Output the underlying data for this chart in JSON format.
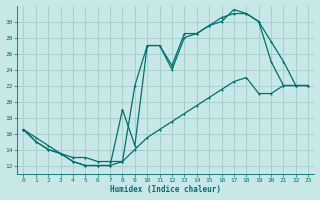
{
  "xlabel": "Humidex (Indice chaleur)",
  "bg_color": "#c8e8e8",
  "grid_color": "#a8cece",
  "line_color": "#007070",
  "xlim": [
    -0.5,
    23.5
  ],
  "ylim": [
    11,
    32
  ],
  "xticks": [
    0,
    1,
    2,
    3,
    4,
    5,
    6,
    7,
    8,
    9,
    10,
    11,
    12,
    13,
    14,
    15,
    16,
    17,
    18,
    19,
    20,
    21,
    22,
    23
  ],
  "yticks": [
    12,
    14,
    16,
    18,
    20,
    22,
    24,
    26,
    28,
    30
  ],
  "line1_x": [
    0,
    1,
    2,
    3,
    4,
    5,
    6,
    7,
    8,
    9,
    10,
    11,
    12,
    13,
    14,
    15,
    16,
    17,
    18,
    19,
    20,
    21,
    22,
    23
  ],
  "line1_y": [
    16.5,
    15.0,
    14.0,
    13.5,
    12.5,
    12.0,
    12.0,
    12.0,
    19.0,
    14.5,
    27.0,
    27.0,
    24.0,
    28.0,
    28.5,
    29.5,
    30.0,
    31.5,
    31.0,
    30.0,
    27.5,
    25.0,
    22.0,
    22.0
  ],
  "line2_x": [
    0,
    1,
    2,
    3,
    4,
    5,
    6,
    7,
    8,
    9,
    10,
    11,
    12,
    13,
    14,
    15,
    16,
    17,
    18,
    19,
    20,
    21,
    22,
    23
  ],
  "line2_y": [
    16.5,
    15.0,
    14.0,
    13.5,
    12.5,
    12.0,
    12.0,
    12.0,
    12.5,
    22.0,
    27.0,
    27.0,
    24.5,
    28.5,
    28.5,
    29.5,
    30.5,
    31.0,
    31.0,
    30.0,
    25.0,
    22.0,
    22.0,
    22.0
  ],
  "line3_x": [
    0,
    1,
    2,
    3,
    4,
    5,
    6,
    7,
    8,
    9,
    10,
    11,
    12,
    13,
    14,
    15,
    16,
    17,
    18,
    19,
    20,
    21,
    22,
    23
  ],
  "line3_y": [
    16.5,
    15.5,
    14.5,
    13.5,
    13.0,
    13.0,
    12.5,
    12.5,
    12.5,
    14.0,
    15.5,
    16.5,
    17.5,
    18.5,
    19.5,
    20.5,
    21.5,
    22.5,
    23.0,
    21.0,
    21.0,
    22.0,
    22.0,
    22.0
  ]
}
